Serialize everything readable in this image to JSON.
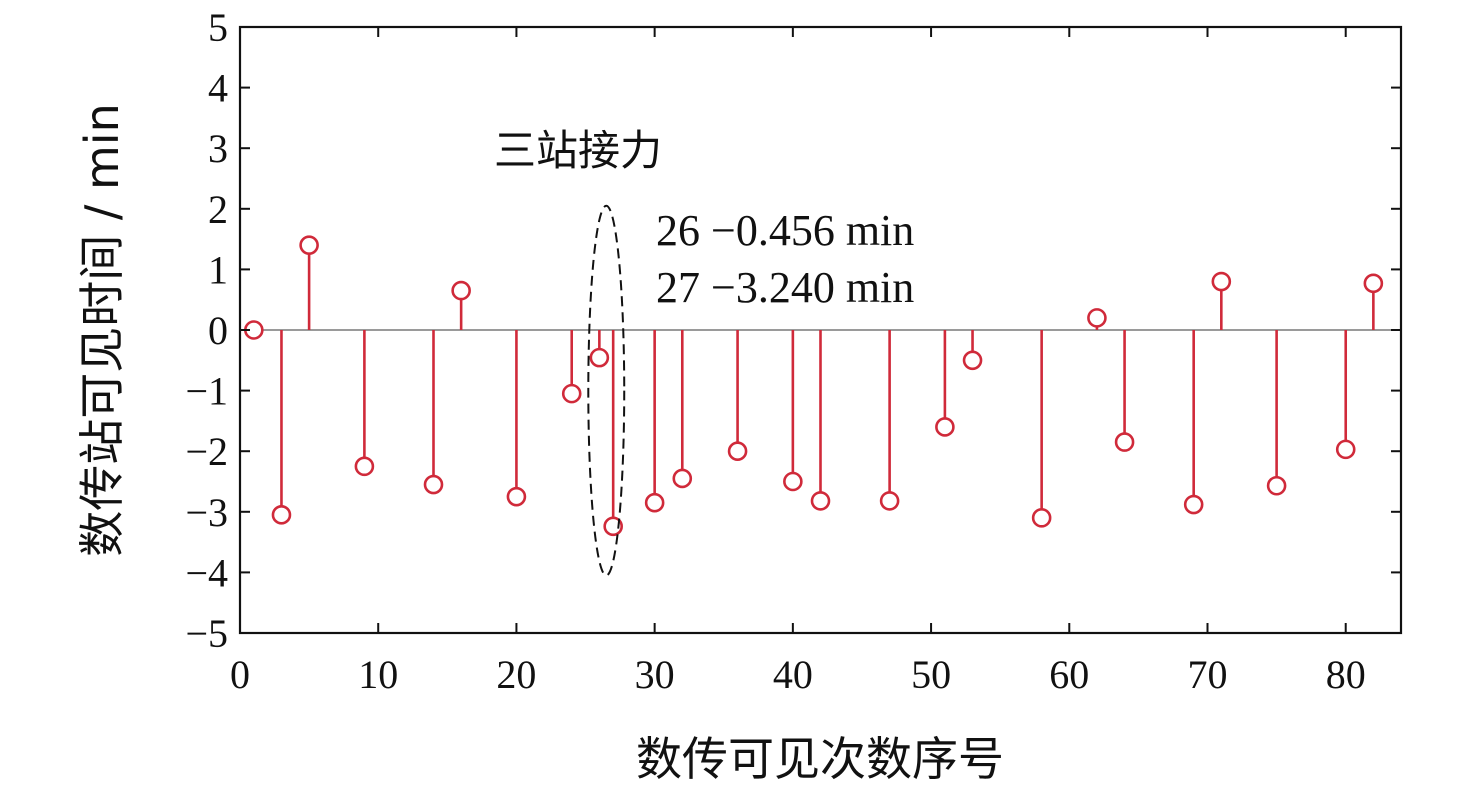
{
  "chart_data": {
    "type": "scatter",
    "subtype": "stem",
    "xlabel": "数传可见次数序号",
    "ylabel": "数传站可见时间 / min",
    "xlim": [
      0,
      84
    ],
    "ylim": [
      -5,
      5
    ],
    "xticks": [
      0,
      10,
      20,
      30,
      40,
      50,
      60,
      70,
      80
    ],
    "yticks": [
      -5,
      -4,
      -3,
      -2,
      -1,
      0,
      1,
      2,
      3,
      4,
      5
    ],
    "grid": false,
    "series": [
      {
        "color": "#d02a3a",
        "points": [
          {
            "x": 1,
            "y": 0.0
          },
          {
            "x": 3,
            "y": -3.05
          },
          {
            "x": 5,
            "y": 1.4
          },
          {
            "x": 9,
            "y": -2.25
          },
          {
            "x": 14,
            "y": -2.55
          },
          {
            "x": 16,
            "y": 0.65
          },
          {
            "x": 20,
            "y": -2.75
          },
          {
            "x": 24,
            "y": -1.05
          },
          {
            "x": 26,
            "y": -0.456
          },
          {
            "x": 27,
            "y": -3.24
          },
          {
            "x": 30,
            "y": -2.85
          },
          {
            "x": 32,
            "y": -2.45
          },
          {
            "x": 36,
            "y": -2.0
          },
          {
            "x": 40,
            "y": -2.5
          },
          {
            "x": 42,
            "y": -2.82
          },
          {
            "x": 47,
            "y": -2.82
          },
          {
            "x": 51,
            "y": -1.6
          },
          {
            "x": 53,
            "y": -0.5
          },
          {
            "x": 58,
            "y": -3.1
          },
          {
            "x": 62,
            "y": 0.2
          },
          {
            "x": 64,
            "y": -1.85
          },
          {
            "x": 69,
            "y": -2.88
          },
          {
            "x": 71,
            "y": 0.8
          },
          {
            "x": 75,
            "y": -2.57
          },
          {
            "x": 80,
            "y": -1.97
          },
          {
            "x": 82,
            "y": 0.77
          }
        ]
      }
    ],
    "annotations": {
      "title": "三站接力",
      "lines": [
        "26 −0.456 min",
        "27 −3.240 min"
      ],
      "ellipse": {
        "cx": 26.5,
        "cy": -1.0,
        "rx": 1.3,
        "ry": 3.05
      }
    }
  }
}
